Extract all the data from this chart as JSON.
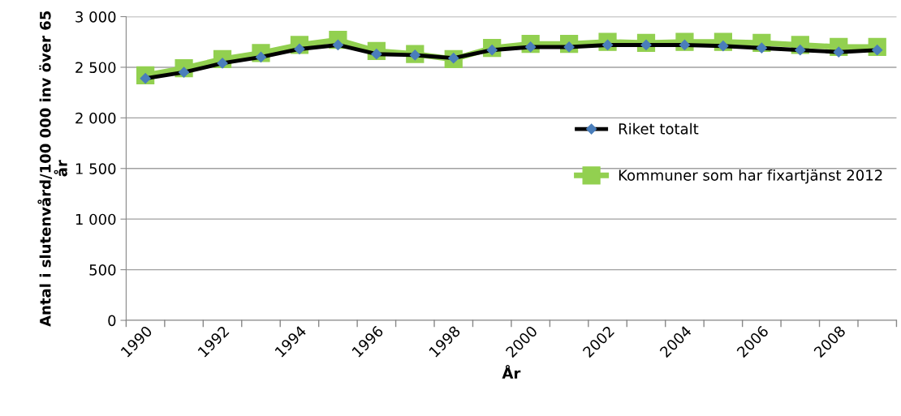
{
  "chart_data": {
    "type": "line",
    "xlabel": "År",
    "ylabel": "Antal i slutenvård/100 000 inv över 65 år",
    "categories": [
      "1990",
      null,
      "1992",
      null,
      "1994",
      null,
      "1996",
      null,
      "1998",
      null,
      "2000",
      null,
      "2002",
      null,
      "2004",
      null,
      "2006",
      null,
      "2008",
      null
    ],
    "series": [
      {
        "name": "Riket totalt",
        "color": "#000000",
        "marker": "diamond",
        "values": [
          2390,
          2450,
          2540,
          2600,
          2680,
          2720,
          2630,
          2620,
          2590,
          2670,
          2700,
          2700,
          2720,
          2720,
          2720,
          2710,
          2690,
          2670,
          2650,
          2670
        ]
      },
      {
        "name": "Kommuner som har fixartjänst 2012",
        "color": "#92d050",
        "marker": "square",
        "values": [
          2420,
          2490,
          2580,
          2640,
          2720,
          2770,
          2660,
          2630,
          2580,
          2690,
          2730,
          2730,
          2750,
          2740,
          2750,
          2750,
          2740,
          2720,
          2700,
          2700
        ]
      }
    ],
    "ylim": [
      0,
      3000
    ],
    "yticks": [
      {
        "value": 0,
        "label": "0"
      },
      {
        "value": 500,
        "label": "500"
      },
      {
        "value": 1000,
        "label": "1 000"
      },
      {
        "value": 1500,
        "label": "1 500"
      },
      {
        "value": 2000,
        "label": "2 000"
      },
      {
        "value": 2500,
        "label": "2 500"
      },
      {
        "value": 3000,
        "label": "3 000"
      }
    ],
    "grid": "y",
    "legend": "right",
    "line_style": "solid"
  }
}
